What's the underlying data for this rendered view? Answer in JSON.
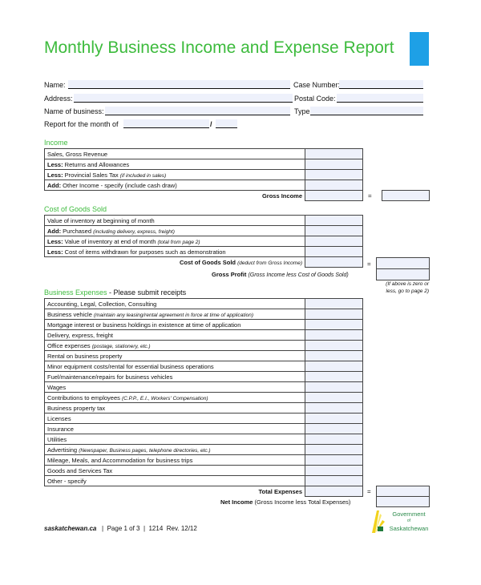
{
  "title": "Monthly Business Income and Expense Report",
  "accent_color": "#3dbb3d",
  "brand_block_color": "#1ea0e6",
  "fields": {
    "name": "Name:",
    "case_number": "Case Number:",
    "address": "Address:",
    "postal_code": "Postal Code:",
    "business_name": "Name of business:",
    "type": "Type:",
    "month": "Report for the month of",
    "slash": "/"
  },
  "income": {
    "heading": "Income",
    "rows": [
      {
        "bold": "",
        "text": "Sales, Gross Revenue",
        "italic": ""
      },
      {
        "bold": "Less:",
        "text": " Returns and Allowances",
        "italic": ""
      },
      {
        "bold": "Less:",
        "text": " Provincial Sales Tax ",
        "italic": "(if included in sales)"
      },
      {
        "bold": "Add:",
        "text": " Other Income - specify (include cash draw)",
        "italic": ""
      }
    ],
    "total_label": "Gross Income",
    "equals": "="
  },
  "cogs": {
    "heading": "Cost of Goods Sold",
    "rows": [
      {
        "bold": "",
        "text": "Value of inventory at beginning of month",
        "italic": ""
      },
      {
        "bold": "Add:",
        "text": " Purchased ",
        "italic": "(including delivery, express, freight)"
      },
      {
        "bold": "Less:",
        "text": " Value of inventory at end of month ",
        "italic": "(total from page 2)"
      },
      {
        "bold": "Less:",
        "text": " Cost of items withdrawn for purposes such as demonstration",
        "italic": ""
      }
    ],
    "total_label": "Cost of Goods Sold",
    "total_note": "(deduct from Gross Income)",
    "equals": "=",
    "gross_profit_label": "Gross Profit",
    "gross_profit_note": "(Gross Income less Cost of Goods Sold)",
    "zero_note_1": "(If above is zero or",
    "zero_note_2": "less, go to page 2)"
  },
  "expenses": {
    "heading": "Business Expenses",
    "heading_note": " - Please submit receipts",
    "rows": [
      {
        "text": "Accounting, Legal, Collection, Consulting",
        "italic": ""
      },
      {
        "text": "Business vehicle ",
        "italic": "(maintain any leasing/rental agreement in force at time of application)"
      },
      {
        "text": "Mortgage interest or business holdings in existence at time of application",
        "italic": ""
      },
      {
        "text": "Delivery, express, freight",
        "italic": ""
      },
      {
        "text": "Office expenses ",
        "italic": "(postage, stationery, etc.)"
      },
      {
        "text": "Rental on business property",
        "italic": ""
      },
      {
        "text": "Minor equipment costs/rental for essential business operations",
        "italic": ""
      },
      {
        "text": "Fuel/maintenance/repairs for business vehicles",
        "italic": ""
      },
      {
        "text": "Wages",
        "italic": ""
      },
      {
        "text": "Contributions to employees ",
        "italic": "(C.P.P., E.I., Workers' Compensation)"
      },
      {
        "text": "Business property tax",
        "italic": ""
      },
      {
        "text": "Licenses",
        "italic": ""
      },
      {
        "text": "Insurance",
        "italic": ""
      },
      {
        "text": "Utilities",
        "italic": ""
      },
      {
        "text": "Advertising ",
        "italic": "(Newspaper, Business pages, telephone directories, etc.)"
      },
      {
        "text": "Mileage, Meals, and Accommodation for business trips",
        "italic": ""
      },
      {
        "text": "Goods and Services Tax",
        "italic": ""
      },
      {
        "text": "Other - specify",
        "italic": ""
      }
    ],
    "total_label": "Total Expenses",
    "equals": "=",
    "net_label": "Net Income",
    "net_note": " (Gross Income less Total Expenses)"
  },
  "footer": {
    "site": "saskatchewan.ca",
    "sep": "|",
    "page": "Page 1 of 3",
    "form": "1214",
    "rev": "Rev. 12/12"
  },
  "logo": {
    "line1": "Government",
    "line2": "of",
    "line3": "Saskatchewan"
  }
}
